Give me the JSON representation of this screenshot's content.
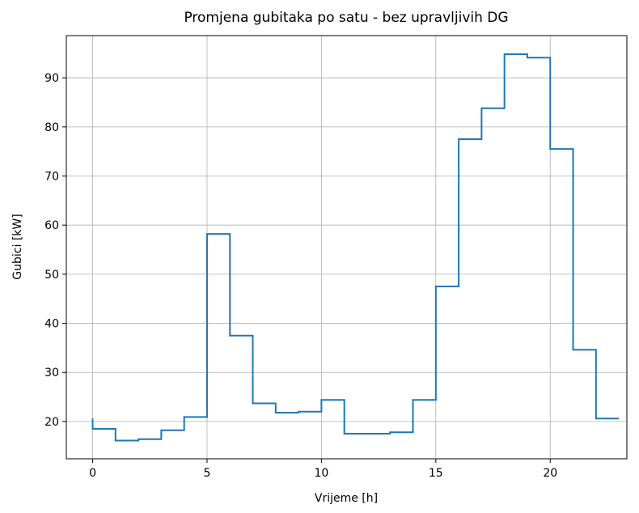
{
  "chart_data": {
    "type": "step",
    "step": "pre",
    "title": "Promjena gubitaka po satu - bez upravljivih DG",
    "xlabel": "Vrijeme [h]",
    "ylabel": "Gubici [kW]",
    "x": [
      0,
      1,
      2,
      3,
      4,
      5,
      6,
      7,
      8,
      9,
      10,
      11,
      12,
      13,
      14,
      15,
      16,
      17,
      18,
      19,
      20,
      21,
      22,
      23
    ],
    "series": [
      {
        "name": "Gubici",
        "color": "#1f77b4",
        "values": [
          20.6,
          18.5,
          16.1,
          16.4,
          18.2,
          20.9,
          58.2,
          37.5,
          23.7,
          21.8,
          22.0,
          24.4,
          17.5,
          17.5,
          17.8,
          24.4,
          47.5,
          77.5,
          83.8,
          94.8,
          94.1,
          75.5,
          34.6,
          20.6
        ]
      }
    ],
    "xlim": [
      -1.15,
      23.35
    ],
    "ylim": [
      12.4,
      98.6
    ],
    "xticks": [
      0,
      5,
      10,
      15,
      20
    ],
    "yticks": [
      20,
      30,
      40,
      50,
      60,
      70,
      80,
      90
    ],
    "grid": true
  }
}
